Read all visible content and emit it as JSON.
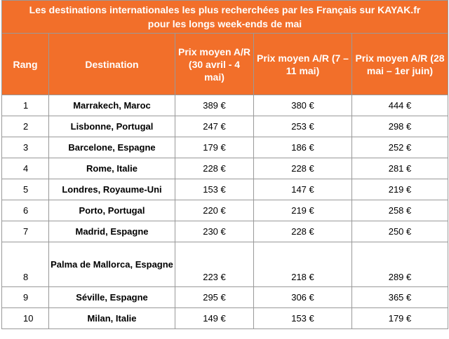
{
  "title_line1": "Les destinations internationales les plus recherchées par les Français sur KAYAK.fr",
  "title_line2": "pour les longs week-ends de mai",
  "headers": {
    "rank": "Rang",
    "destination": "Destination",
    "period1": "Prix moyen A/R (30 avril - 4 mai)",
    "period2": "Prix moyen A/R (7 – 11 mai)",
    "period3": "Prix moyen A/R (28 mai – 1er juin)"
  },
  "rows": [
    {
      "rank": "1",
      "destination": "Marrakech, Maroc",
      "p1": "389 €",
      "p2": "380 €",
      "p3": "444 €"
    },
    {
      "rank": "2",
      "destination": "Lisbonne, Portugal",
      "p1": "247 €",
      "p2": "253 €",
      "p3": "298 €"
    },
    {
      "rank": "3",
      "destination": "Barcelone, Espagne",
      "p1": "179 €",
      "p2": "186 €",
      "p3": "252 €"
    },
    {
      "rank": "4",
      "destination": "Rome, Italie",
      "p1": "228 €",
      "p2": "228 €",
      "p3": "281 €"
    },
    {
      "rank": "5",
      "destination": "Londres, Royaume-Uni",
      "p1": "153 €",
      "p2": "147 €",
      "p3": "219 €"
    },
    {
      "rank": "6",
      "destination": "Porto, Portugal",
      "p1": "220 €",
      "p2": "219 €",
      "p3": "258 €"
    },
    {
      "rank": "7",
      "destination": "Madrid, Espagne",
      "p1": "230 €",
      "p2": "228 €",
      "p3": "250 €"
    },
    {
      "rank": "8",
      "destination": "Palma de Mallorca, Espagne",
      "p1": "223 €",
      "p2": "218 €",
      "p3": "289 €"
    },
    {
      "rank": "9",
      "destination": "Séville, Espagne",
      "p1": "295 €",
      "p2": "306 €",
      "p3": "365 €"
    },
    {
      "rank": "10",
      "destination": "Milan, Italie",
      "p1": "149 €",
      "p2": "153 €",
      "p3": "179 €"
    }
  ]
}
